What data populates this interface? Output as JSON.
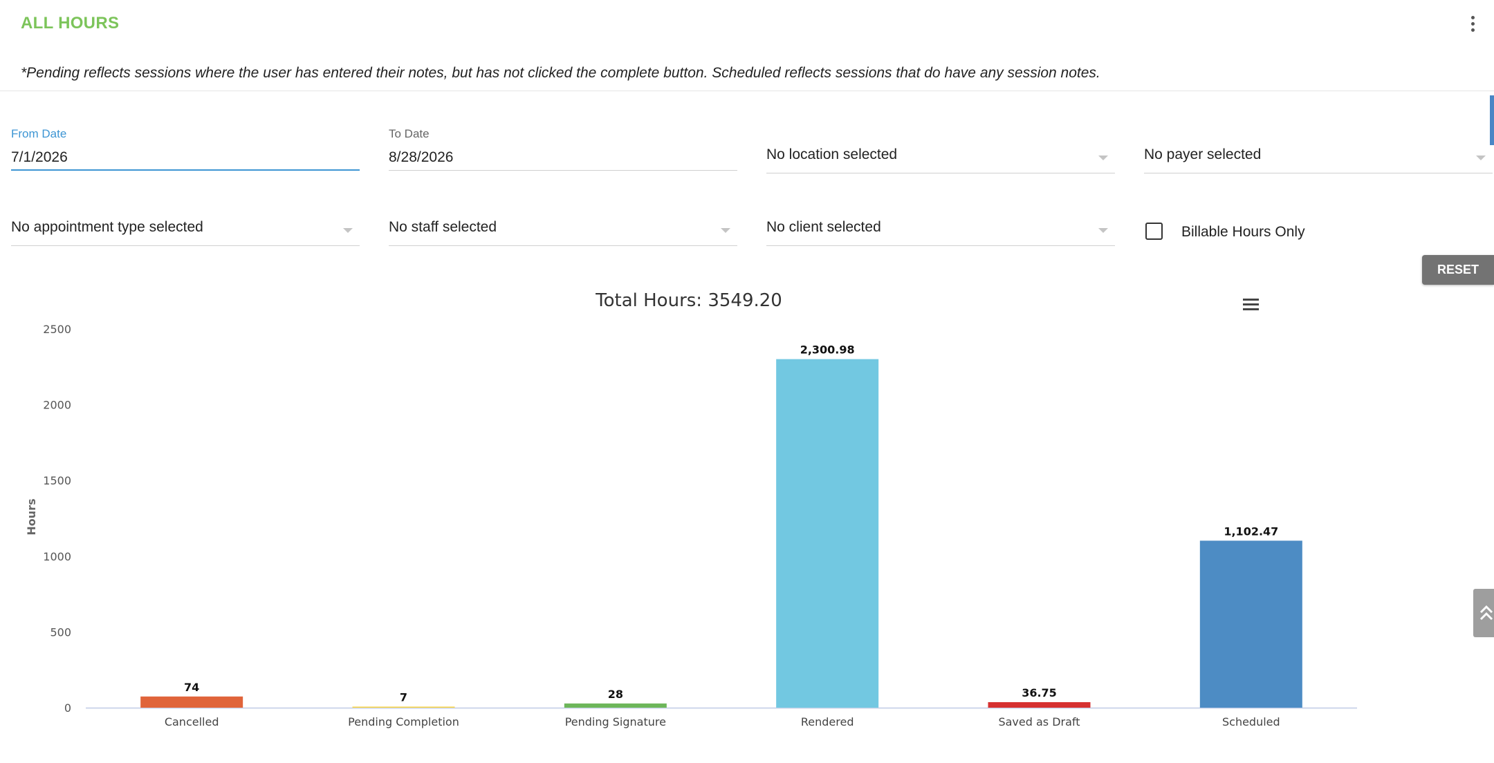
{
  "header": {
    "title": "ALL HOURS"
  },
  "note": "*Pending reflects sessions where the user has entered their notes, but has not clicked the complete button. Scheduled reflects sessions that do have any session notes.",
  "filters": {
    "from_date": {
      "label": "From Date",
      "value": "7/1/2026"
    },
    "to_date": {
      "label": "To Date",
      "value": "8/28/2026"
    },
    "location": {
      "value": "No location selected"
    },
    "payer": {
      "value": "No payer selected"
    },
    "appointment_type": {
      "value": "No appointment type selected"
    },
    "staff": {
      "value": "No staff selected"
    },
    "client": {
      "value": "No client selected"
    },
    "billable": {
      "label": "Billable Hours Only",
      "checked": false
    }
  },
  "reset_label": "RESET",
  "icons": {
    "menu": "kebab-menu-icon",
    "chart_menu": "hamburger-menu-icon",
    "scroll": "double-chevron-up-icon"
  },
  "chart_data": {
    "type": "bar",
    "title": "Total Hours: 3549.20",
    "xlabel": "",
    "ylabel": "Hours",
    "categories": [
      "Cancelled",
      "Pending Completion",
      "Pending Signature",
      "Rendered",
      "Saved as Draft",
      "Scheduled"
    ],
    "values": [
      74,
      7,
      28,
      2300.98,
      36.75,
      1102.47
    ],
    "data_labels": [
      "74",
      "7",
      "28",
      "2,300.98",
      "36.75",
      "1,102.47"
    ],
    "colors": [
      "#e0643a",
      "#f5d142",
      "#6db65a",
      "#72c8e1",
      "#d63131",
      "#4d8cc4"
    ],
    "y_ticks": [
      "0",
      "500",
      "1000",
      "1500",
      "2000",
      "2500"
    ],
    "ylim": [
      0,
      2500
    ],
    "grid": false,
    "legend": "none"
  }
}
